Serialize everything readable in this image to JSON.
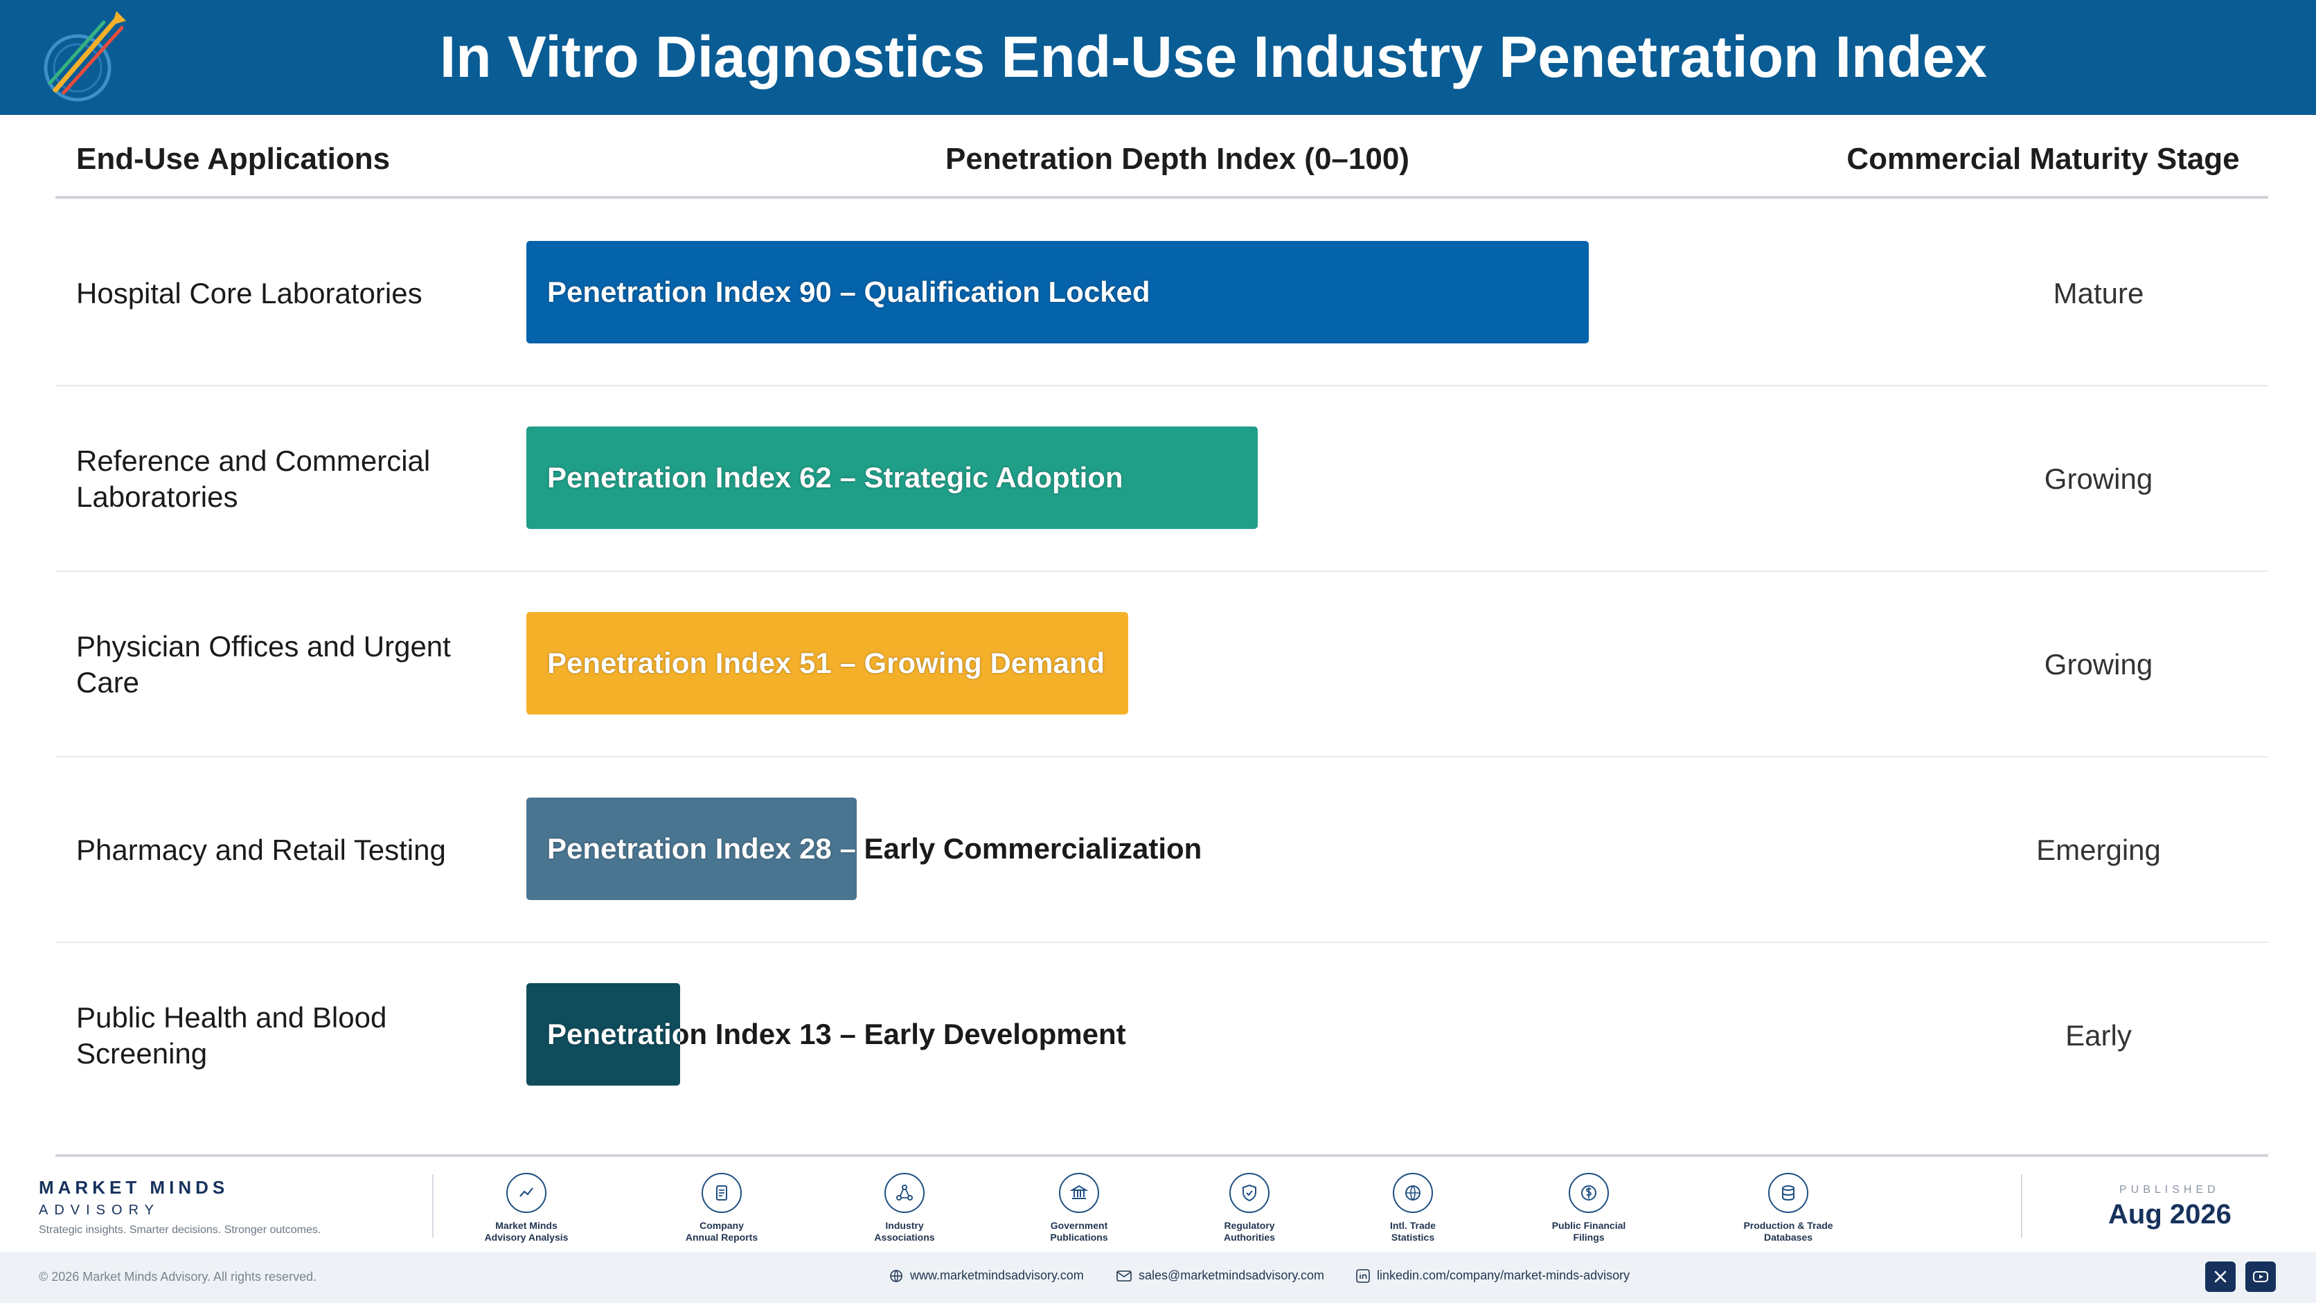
{
  "header": {
    "title": "In Vitro Diagnostics End-Use Industry Penetration Index",
    "logo_icon": "market-minds-logo"
  },
  "columns": {
    "applications": "End-Use Applications",
    "index": "Penetration Depth Index (0–100)",
    "stage": "Commercial Maturity Stage"
  },
  "chart_data": {
    "type": "bar",
    "orientation": "horizontal",
    "title": "In Vitro Diagnostics End-Use Industry Penetration Index",
    "xlabel": "Penetration Depth Index (0–100)",
    "xlim": [
      0,
      100
    ],
    "categories": [
      "Hospital Core Laboratories",
      "Reference and Commercial Laboratories",
      "Physician Offices and Urgent Care",
      "Pharmacy and Retail Testing",
      "Public Health and Blood Screening"
    ],
    "values": [
      90,
      62,
      51,
      28,
      13
    ],
    "bar_labels": [
      "Penetration Index 90 – Qualification Locked",
      "Penetration Index 62 – Strategic Adoption",
      "Penetration Index 51 – Growing Demand",
      "Penetration Index 28 – Early Commercialization",
      "Penetration Index 13 – Early Development"
    ],
    "stages": [
      "Mature",
      "Growing",
      "Growing",
      "Emerging",
      "Early"
    ],
    "colors": [
      "#0563ab",
      "#1f9e88",
      "#f5b02a",
      "#4a7591",
      "#0f4c5c"
    ]
  },
  "footer": {
    "brand_name": "MARKET MINDS",
    "brand_sub": "ADVISORY",
    "tagline": "Strategic insights. Smarter decisions. Stronger outcomes.",
    "sources": [
      {
        "icon": "trend-chart-icon",
        "line1": "Market Minds",
        "line2": "Advisory Analysis"
      },
      {
        "icon": "document-icon",
        "line1": "Company",
        "line2": "Annual Reports"
      },
      {
        "icon": "network-icon",
        "line1": "Industry",
        "line2": "Associations"
      },
      {
        "icon": "government-building-icon",
        "line1": "Government",
        "line2": "Publications"
      },
      {
        "icon": "shield-check-icon",
        "line1": "Regulatory",
        "line2": "Authorities"
      },
      {
        "icon": "globe-icon",
        "line1": "Intl. Trade",
        "line2": "Statistics"
      },
      {
        "icon": "currency-icon",
        "line1": "Public Financial",
        "line2": "Filings"
      },
      {
        "icon": "database-icon",
        "line1": "Production & Trade",
        "line2": "Databases"
      }
    ],
    "published_label": "PUBLISHED",
    "published_date": "Aug 2026",
    "copyright": "© 2026 Market Minds Advisory. All rights reserved.",
    "website": "www.marketmindsadvisory.com",
    "email": "sales@marketmindsadvisory.com",
    "linkedin": "linkedin.com/company/market-minds-advisory"
  }
}
